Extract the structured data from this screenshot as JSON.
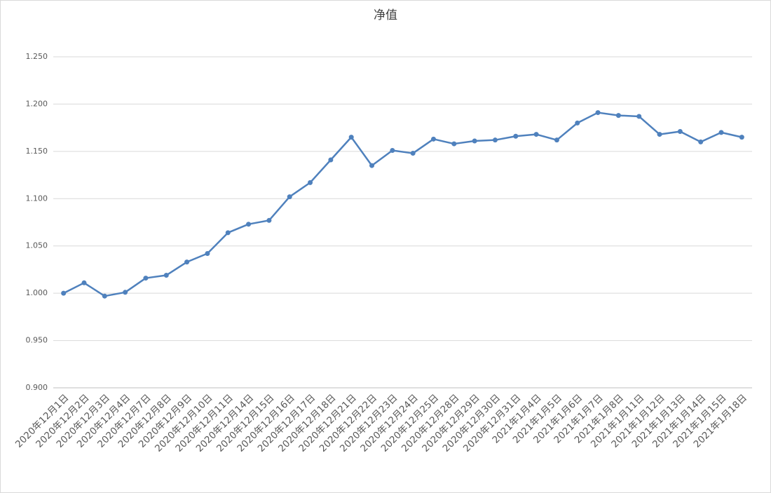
{
  "chart_data": {
    "type": "line",
    "title": "净值",
    "categories": [
      "2020年12月1日",
      "2020年12月2日",
      "2020年12月3日",
      "2020年12月4日",
      "2020年12月7日",
      "2020年12月8日",
      "2020年12月9日",
      "2020年12月10日",
      "2020年12月11日",
      "2020年12月14日",
      "2020年12月15日",
      "2020年12月16日",
      "2020年12月17日",
      "2020年12月18日",
      "2020年12月21日",
      "2020年12月22日",
      "2020年12月23日",
      "2020年12月24日",
      "2020年12月25日",
      "2020年12月28日",
      "2020年12月29日",
      "2020年12月30日",
      "2020年12月31日",
      "2021年1月4日",
      "2021年1月5日",
      "2021年1月6日",
      "2021年1月7日",
      "2021年1月8日",
      "2021年1月11日",
      "2021年1月12日",
      "2021年1月13日",
      "2021年1月14日",
      "2021年1月15日",
      "2021年1月18日"
    ],
    "values": [
      1.0,
      1.011,
      0.997,
      1.001,
      1.016,
      1.019,
      1.033,
      1.042,
      1.064,
      1.073,
      1.077,
      1.102,
      1.117,
      1.141,
      1.165,
      1.135,
      1.151,
      1.148,
      1.163,
      1.158,
      1.161,
      1.162,
      1.166,
      1.168,
      1.162,
      1.18,
      1.191,
      1.188,
      1.187,
      1.168,
      1.171,
      1.16,
      1.17,
      1.165
    ],
    "color": "#4f81bd",
    "ylim": [
      0.9,
      1.25
    ],
    "yticks": [
      {
        "value": 0.9,
        "label": "0.900"
      },
      {
        "value": 0.95,
        "label": "0.950"
      },
      {
        "value": 1.0,
        "label": "1.000"
      },
      {
        "value": 1.05,
        "label": "1.050"
      },
      {
        "value": 1.1,
        "label": "1.100"
      },
      {
        "value": 1.15,
        "label": "1.150"
      },
      {
        "value": 1.2,
        "label": "1.200"
      },
      {
        "value": 1.25,
        "label": "1.250"
      }
    ],
    "grid": true
  }
}
